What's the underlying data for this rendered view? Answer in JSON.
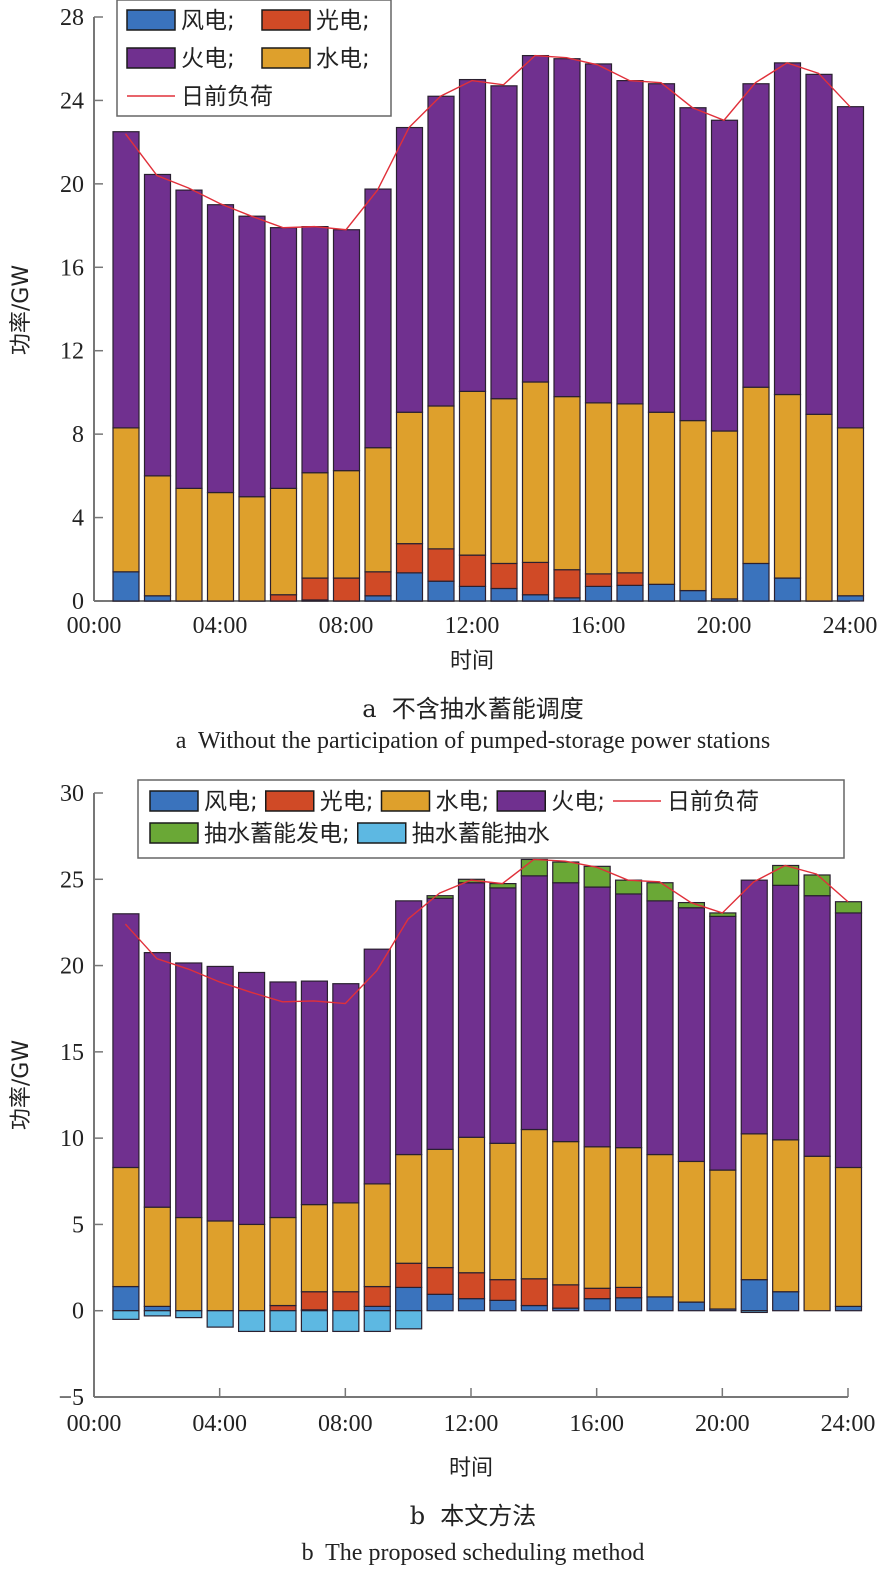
{
  "colors": {
    "wind": "#3a73bd",
    "pv": "#d04a26",
    "hydro": "#dea02c",
    "thermal": "#70308f",
    "ps_gen": "#6aa836",
    "ps_pump": "#5db8e2",
    "load": "#e0303a",
    "axis": "#777777"
  },
  "chart_data": [
    {
      "id": "a",
      "type": "bar",
      "stacked": true,
      "caption_zh": "a  不含抽水蓄能调度",
      "caption_en": "a  Without the participation of pumped-storage power stations",
      "xlabel": "时间",
      "ylabel": "功率/GW",
      "ylim": [
        0,
        28
      ],
      "yticks": [
        0,
        4,
        8,
        12,
        16,
        20,
        24,
        28
      ],
      "xticks": [
        "00:00",
        "04:00",
        "08:00",
        "12:00",
        "16:00",
        "20:00",
        "24:00"
      ],
      "x_hours": [
        1,
        2,
        3,
        4,
        5,
        6,
        7,
        8,
        9,
        10,
        11,
        12,
        13,
        14,
        15,
        16,
        17,
        18,
        19,
        20,
        21,
        22,
        23,
        24
      ],
      "legend": {
        "placement": "top-left",
        "rows": [
          [
            {
              "key": "wind",
              "label": "风电;"
            },
            {
              "key": "pv",
              "label": "光电;"
            }
          ],
          [
            {
              "key": "thermal",
              "label": "火电;"
            },
            {
              "key": "hydro",
              "label": "水电;"
            }
          ],
          [
            {
              "key": "load",
              "label": "日前负荷",
              "line": true
            }
          ]
        ]
      },
      "series": [
        {
          "name": "风电",
          "key": "wind",
          "values": [
            1.4,
            0.25,
            0,
            0,
            0,
            0,
            0.05,
            0,
            0.25,
            1.35,
            0.95,
            0.7,
            0.6,
            0.3,
            0.15,
            0.7,
            0.75,
            0.8,
            0.5,
            0.1,
            1.8,
            1.1,
            0,
            0.25
          ]
        },
        {
          "name": "光电",
          "key": "pv",
          "values": [
            0,
            0,
            0,
            0,
            0,
            0.3,
            1.05,
            1.1,
            1.15,
            1.4,
            1.55,
            1.5,
            1.2,
            1.55,
            1.35,
            0.6,
            0.6,
            0,
            0,
            0,
            0,
            0,
            0,
            0
          ]
        },
        {
          "name": "水电",
          "key": "hydro",
          "values": [
            6.9,
            5.75,
            5.4,
            5.2,
            5.0,
            5.1,
            5.05,
            5.15,
            5.95,
            6.3,
            6.85,
            7.85,
            7.9,
            8.65,
            8.3,
            8.2,
            8.1,
            8.25,
            8.15,
            8.05,
            8.45,
            8.8,
            8.95,
            8.05
          ]
        },
        {
          "name": "火电",
          "key": "thermal",
          "values": [
            14.2,
            14.45,
            14.3,
            13.8,
            13.45,
            12.5,
            11.8,
            11.55,
            12.4,
            13.65,
            14.85,
            14.95,
            15.0,
            15.65,
            16.2,
            16.25,
            15.5,
            15.75,
            15.0,
            14.9,
            14.55,
            15.9,
            16.3,
            15.4
          ]
        }
      ],
      "load": {
        "name": "日前负荷",
        "values": [
          22.4,
          20.4,
          19.8,
          19.05,
          18.45,
          17.9,
          17.95,
          17.8,
          19.7,
          22.7,
          24.2,
          24.95,
          24.75,
          26.15,
          26.05,
          25.7,
          24.95,
          24.85,
          23.65,
          23.05,
          24.85,
          25.8,
          25.3,
          23.7
        ]
      }
    },
    {
      "id": "b",
      "type": "bar",
      "stacked": true,
      "caption_zh": "b  本文方法",
      "caption_en": "b  The proposed scheduling method",
      "xlabel": "时间",
      "ylabel": "功率/GW",
      "ylim": [
        -5,
        30
      ],
      "yticks": [
        -5,
        0,
        5,
        10,
        15,
        20,
        25,
        30
      ],
      "xticks": [
        "00:00",
        "04:00",
        "08:00",
        "12:00",
        "16:00",
        "20:00",
        "24:00"
      ],
      "x_hours": [
        1,
        2,
        3,
        4,
        5,
        6,
        7,
        8,
        9,
        10,
        11,
        12,
        13,
        14,
        15,
        16,
        17,
        18,
        19,
        20,
        21,
        22,
        23,
        24
      ],
      "legend": {
        "placement": "top",
        "rows": [
          [
            {
              "key": "wind",
              "label": "风电;"
            },
            {
              "key": "pv",
              "label": "光电;"
            },
            {
              "key": "hydro",
              "label": "水电;"
            },
            {
              "key": "thermal",
              "label": "火电;"
            },
            {
              "key": "load",
              "label": "日前负荷",
              "line": true
            }
          ],
          [
            {
              "key": "ps_gen",
              "label": "抽水蓄能发电;"
            },
            {
              "key": "ps_pump",
              "label": "抽水蓄能抽水"
            }
          ]
        ]
      },
      "series": [
        {
          "name": "风电",
          "key": "wind",
          "values": [
            1.4,
            0.25,
            0,
            0,
            0,
            0,
            0.05,
            0,
            0.25,
            1.35,
            0.95,
            0.7,
            0.6,
            0.3,
            0.15,
            0.7,
            0.75,
            0.8,
            0.5,
            0.1,
            1.8,
            1.1,
            0,
            0.25
          ]
        },
        {
          "name": "光电",
          "key": "pv",
          "values": [
            0,
            0,
            0,
            0,
            0,
            0.3,
            1.05,
            1.1,
            1.15,
            1.4,
            1.55,
            1.5,
            1.2,
            1.55,
            1.35,
            0.6,
            0.6,
            0,
            0,
            0,
            0,
            0,
            0,
            0
          ]
        },
        {
          "name": "水电",
          "key": "hydro",
          "values": [
            6.9,
            5.75,
            5.4,
            5.2,
            5.0,
            5.1,
            5.05,
            5.15,
            5.95,
            6.3,
            6.85,
            7.85,
            7.9,
            8.65,
            8.3,
            8.2,
            8.1,
            8.25,
            8.15,
            8.05,
            8.45,
            8.8,
            8.95,
            8.05
          ]
        },
        {
          "name": "火电",
          "key": "thermal",
          "values": [
            14.7,
            14.75,
            14.75,
            14.75,
            14.6,
            13.65,
            12.95,
            12.7,
            13.6,
            14.7,
            14.55,
            14.75,
            14.8,
            14.7,
            15.0,
            15.05,
            14.7,
            14.7,
            14.7,
            14.7,
            14.7,
            14.75,
            15.1,
            14.75
          ]
        },
        {
          "name": "抽水蓄能发电",
          "key": "ps_gen",
          "values": [
            0,
            0,
            0,
            0,
            0,
            0,
            0,
            0,
            0,
            0,
            0.15,
            0.2,
            0.25,
            0.95,
            1.2,
            1.2,
            0.8,
            1.05,
            0.3,
            0.2,
            0,
            1.15,
            1.2,
            0.65
          ]
        },
        {
          "name": "抽水蓄能抽水",
          "key": "ps_pump",
          "values": [
            -0.5,
            -0.3,
            -0.4,
            -0.95,
            -1.2,
            -1.2,
            -1.2,
            -1.2,
            -1.2,
            -1.05,
            0,
            0,
            0,
            0,
            0,
            0,
            0,
            0,
            0,
            0,
            -0.1,
            0,
            0,
            0
          ]
        }
      ],
      "load": {
        "name": "日前负荷",
        "values": [
          22.4,
          20.4,
          19.8,
          19.05,
          18.45,
          17.9,
          17.95,
          17.8,
          19.7,
          22.7,
          24.2,
          24.95,
          24.75,
          26.15,
          26.05,
          25.7,
          24.95,
          24.85,
          23.65,
          23.05,
          24.85,
          25.8,
          25.3,
          23.7
        ]
      }
    }
  ]
}
